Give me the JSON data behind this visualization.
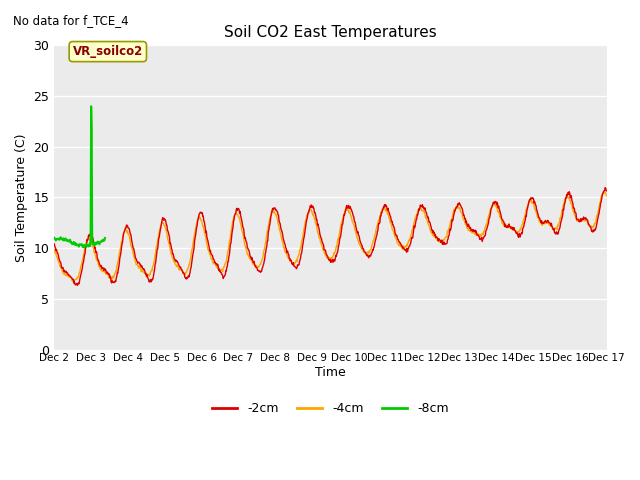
{
  "title": "Soil CO2 East Temperatures",
  "subtitle": "No data for f_TCE_4",
  "ylabel": "Soil Temperature (C)",
  "xlabel": "Time",
  "ylim": [
    0,
    30
  ],
  "yticks": [
    0,
    5,
    10,
    15,
    20,
    25,
    30
  ],
  "bg_color": "#ffffff",
  "plot_bg_color": "#ebebeb",
  "line_2cm_color": "#dd0000",
  "line_4cm_color": "#ffa500",
  "line_8cm_color": "#00cc00",
  "legend_label_2cm": "-2cm",
  "legend_label_4cm": "-4cm",
  "legend_label_8cm": "-8cm",
  "annotation_text": "VR_soilco2",
  "x_tick_labels": [
    "Dec 2",
    "Dec 3",
    "Dec 4",
    "Dec 5",
    "Dec 6",
    "Dec 7",
    "Dec 8",
    "Dec 9",
    "Dec 10",
    "Dec 11",
    "Dec 12",
    "Dec 13",
    "Dec 14",
    "Dec 15",
    "Dec 16",
    "Dec 17"
  ]
}
